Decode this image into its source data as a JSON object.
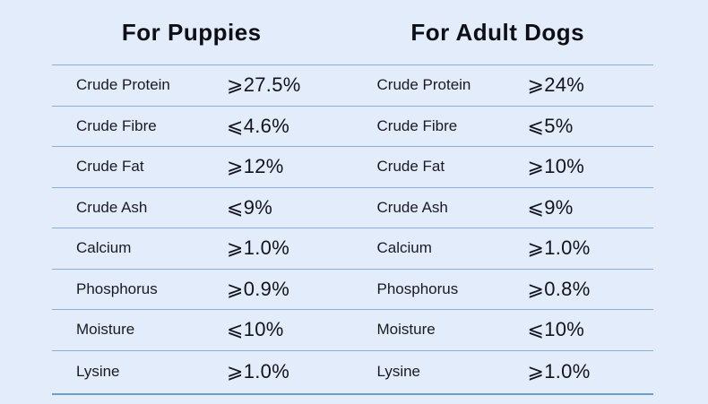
{
  "theme": {
    "background": "#e3ecfb",
    "line_color": "#8aaed4",
    "bottom_line_color": "#6f9dc8",
    "header_text_color": "#0e0e17",
    "label_text_color": "#1a1a23",
    "value_text_color": "#13131c"
  },
  "tables": [
    {
      "title": "For Puppies",
      "rows": [
        {
          "label": "Crude Protein",
          "value": "⩾27.5%"
        },
        {
          "label": "Crude Fibre",
          "value": "⩽4.6%"
        },
        {
          "label": "Crude Fat",
          "value": "⩾12%"
        },
        {
          "label": "Crude Ash",
          "value": "⩽9%"
        },
        {
          "label": "Calcium",
          "value": "⩾1.0%"
        },
        {
          "label": "Phosphorus",
          "value": "⩾0.9%"
        },
        {
          "label": "Moisture",
          "value": "⩽10%"
        },
        {
          "label": "Lysine",
          "value": "⩾1.0%"
        }
      ]
    },
    {
      "title": "For Adult Dogs",
      "rows": [
        {
          "label": "Crude Protein",
          "value": "⩾24%"
        },
        {
          "label": "Crude Fibre",
          "value": "⩽5%"
        },
        {
          "label": "Crude Fat",
          "value": "⩾10%"
        },
        {
          "label": "Crude Ash",
          "value": "⩽9%"
        },
        {
          "label": "Calcium",
          "value": "⩾1.0%"
        },
        {
          "label": "Phosphorus",
          "value": "⩾0.8%"
        },
        {
          "label": "Moisture",
          "value": "⩽10%"
        },
        {
          "label": "Lysine",
          "value": "⩾1.0%"
        }
      ]
    }
  ]
}
